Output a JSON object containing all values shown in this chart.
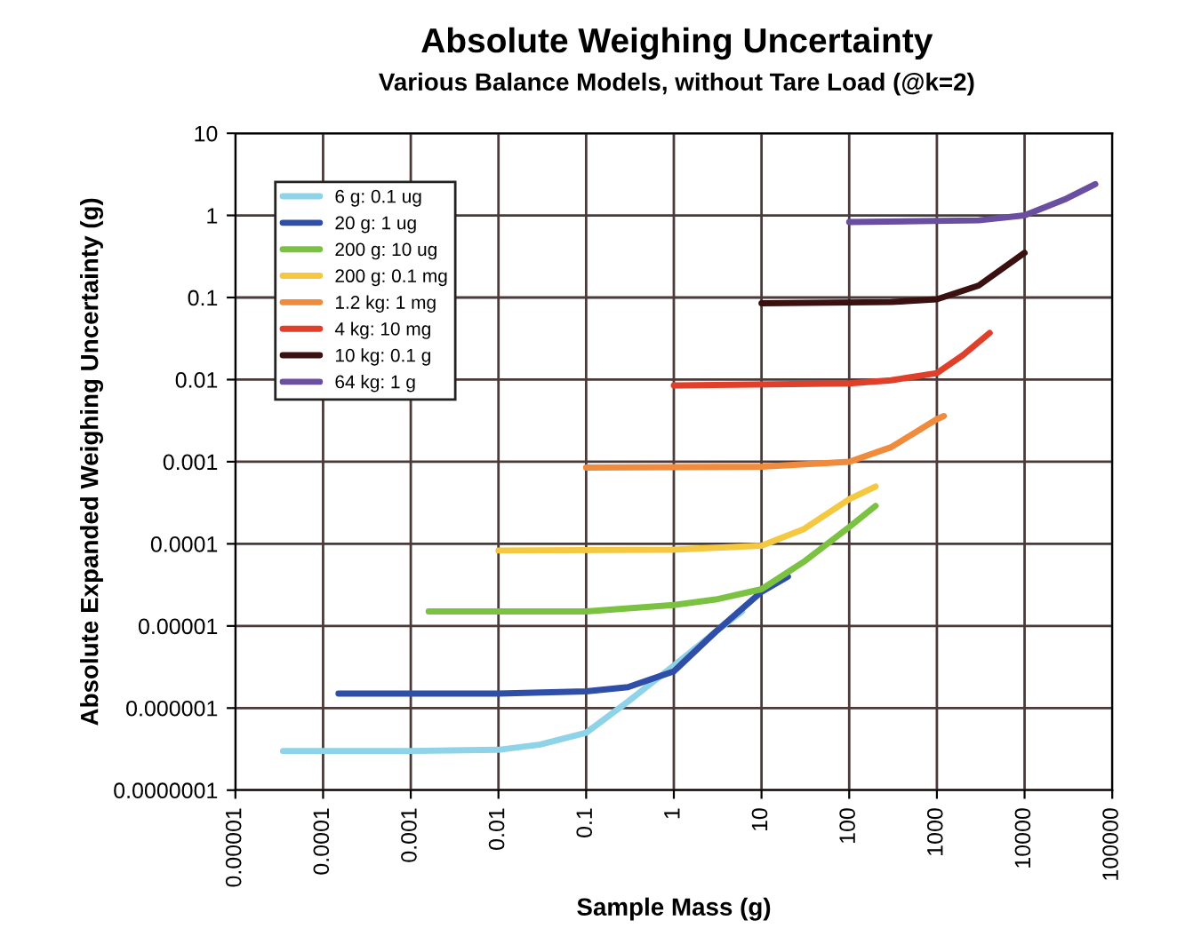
{
  "chart_data": {
    "type": "line",
    "title": "Absolute Weighing Uncertainty",
    "subtitle": "Various Balance Models, without Tare Load (@k=2)",
    "xlabel": "Sample Mass (g)",
    "ylabel": "Absolute Expanded Weighing Uncertainty (g)",
    "log": "xy",
    "grid": true,
    "legend": "top left",
    "marker": "none",
    "line_style": "solid",
    "xlim": [
      1e-05,
      100000
    ],
    "ylim": [
      1e-07,
      10
    ],
    "xticks": [
      {
        "value": 1e-05,
        "label": "0.00001"
      },
      {
        "value": 0.0001,
        "label": "0.0001"
      },
      {
        "value": 0.001,
        "label": "0.001"
      },
      {
        "value": 0.01,
        "label": "0.01"
      },
      {
        "value": 0.1,
        "label": "0.1"
      },
      {
        "value": 1,
        "label": "1"
      },
      {
        "value": 10,
        "label": "10"
      },
      {
        "value": 100,
        "label": "100"
      },
      {
        "value": 1000,
        "label": "1000"
      },
      {
        "value": 10000,
        "label": "10000"
      },
      {
        "value": 100000,
        "label": "100000"
      }
    ],
    "yticks": [
      {
        "value": 1e-07,
        "label": "0.0000001"
      },
      {
        "value": 1e-06,
        "label": "0.000001"
      },
      {
        "value": 1e-05,
        "label": "0.00001"
      },
      {
        "value": 0.0001,
        "label": "0.0001"
      },
      {
        "value": 0.001,
        "label": "0.001"
      },
      {
        "value": 0.01,
        "label": "0.01"
      },
      {
        "value": 0.1,
        "label": "0.1"
      },
      {
        "value": 1,
        "label": "1"
      },
      {
        "value": 10,
        "label": "10"
      }
    ],
    "series": [
      {
        "name": "6 g: 0.1 ug",
        "color": "#8fd3e8",
        "x": [
          3.5e-05,
          0.001,
          0.01,
          0.03,
          0.1,
          0.3,
          1,
          3,
          6
        ],
        "values": [
          3e-07,
          3e-07,
          3.1e-07,
          3.6e-07,
          5e-07,
          1.2e-06,
          3.3e-06,
          8.5e-06,
          1.5e-05
        ]
      },
      {
        "name": "20 g: 1 ug",
        "color": "#2e4ea8",
        "x": [
          0.00015,
          0.01,
          0.1,
          0.3,
          1,
          3,
          10,
          20
        ],
        "values": [
          1.5e-06,
          1.5e-06,
          1.6e-06,
          1.8e-06,
          2.8e-06,
          8.5e-06,
          2.6e-05,
          4e-05
        ]
      },
      {
        "name": "200 g: 10 ug",
        "color": "#7cc242",
        "x": [
          0.0016,
          0.1,
          1,
          3,
          10,
          30,
          100,
          200
        ],
        "values": [
          1.5e-05,
          1.5e-05,
          1.8e-05,
          2.1e-05,
          2.8e-05,
          6e-05,
          0.00016,
          0.00029
        ]
      },
      {
        "name": "200 g: 0.1 mg",
        "color": "#f5c842",
        "x": [
          0.01,
          1,
          10,
          30,
          100,
          200
        ],
        "values": [
          8.3e-05,
          8.5e-05,
          9.5e-05,
          0.00015,
          0.00035,
          0.0005
        ]
      },
      {
        "name": "1.2 kg: 1 mg",
        "color": "#f08a3c",
        "x": [
          0.1,
          10,
          100,
          300,
          1000,
          1200
        ],
        "values": [
          0.00085,
          0.00087,
          0.001,
          0.0015,
          0.0033,
          0.0036
        ]
      },
      {
        "name": "4 kg: 10 mg",
        "color": "#e0402a",
        "x": [
          1,
          100,
          300,
          1000,
          2000,
          4000
        ],
        "values": [
          0.0085,
          0.009,
          0.0098,
          0.012,
          0.02,
          0.037
        ]
      },
      {
        "name": "10 kg: 0.1 g",
        "color": "#3a1010",
        "x": [
          10,
          300,
          1000,
          3000,
          10000
        ],
        "values": [
          0.085,
          0.088,
          0.095,
          0.14,
          0.35
        ]
      },
      {
        "name": "64 kg: 1 g",
        "color": "#6a4fa0",
        "x": [
          100,
          3000,
          10000,
          30000,
          64000
        ],
        "values": [
          0.83,
          0.87,
          1,
          1.6,
          2.4
        ]
      }
    ]
  }
}
